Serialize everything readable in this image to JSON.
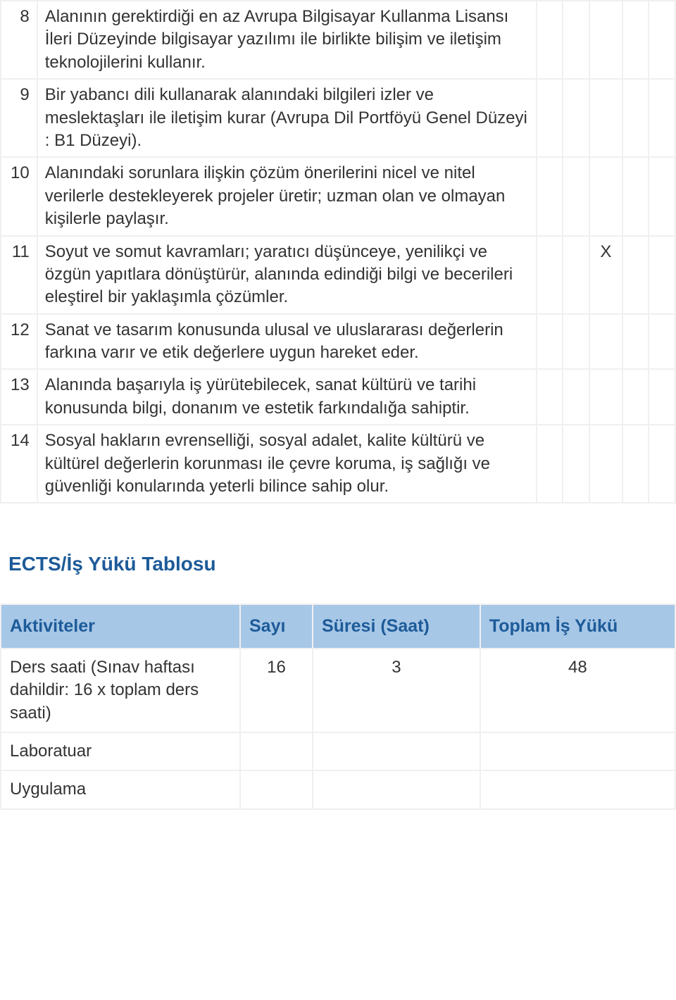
{
  "colors": {
    "border": "#f0f0f0",
    "text": "#333333",
    "heading": "#1d5b99",
    "header_bg": "#a7c7e7",
    "background": "#ffffff"
  },
  "typography": {
    "body_fontsize_pt": 18,
    "heading_fontsize_pt": 21,
    "font_family": "Verdana"
  },
  "outcomes": {
    "type": "table",
    "check_columns": 5,
    "rows": [
      {
        "num": "8",
        "desc": "Alanının gerektirdiği en az Avrupa Bilgisayar Kullanma Lisansı İleri Düzeyinde bilgisayar yazılımı ile birlikte bilişim ve iletişim teknolojilerini kullanır.",
        "checks": [
          "",
          "",
          "",
          "",
          ""
        ]
      },
      {
        "num": "9",
        "desc": "Bir yabancı dili kullanarak alanındaki bilgileri izler ve meslektaşları ile iletişim kurar (Avrupa Dil Portföyü Genel Düzeyi : B1 Düzeyi).",
        "checks": [
          "",
          "",
          "",
          "",
          ""
        ]
      },
      {
        "num": "10",
        "desc": "Alanındaki sorunlara ilişkin çözüm önerilerini nicel ve nitel verilerle destekleyerek projeler üretir; uzman olan ve olmayan kişilerle paylaşır.",
        "checks": [
          "",
          "",
          "",
          "",
          ""
        ]
      },
      {
        "num": "11",
        "desc": "Soyut ve somut kavramları; yaratıcı düşünceye, yenilikçi ve özgün yapıtlara dönüştürür, alanında edindiği bilgi ve becerileri eleştirel bir yaklaşımla çözümler.",
        "checks": [
          "",
          "",
          "X",
          "",
          ""
        ]
      },
      {
        "num": "12",
        "desc": "Sanat ve tasarım konusunda ulusal ve uluslararası değerlerin farkına varır ve etik değerlere uygun hareket eder.",
        "checks": [
          "",
          "",
          "",
          "",
          ""
        ]
      },
      {
        "num": "13",
        "desc": "Alanında başarıyla iş yürütebilecek, sanat kültürü ve tarihi konusunda bilgi, donanım ve estetik farkındalığa sahiptir.",
        "checks": [
          "",
          "",
          "",
          "",
          ""
        ]
      },
      {
        "num": "14",
        "desc": "Sosyal hakların evrenselliği, sosyal adalet, kalite kültürü ve kültürel değerlerin korunması ile çevre koruma, iş sağlığı ve güvenliği konularında yeterli bilince sahip olur.",
        "checks": [
          "",
          "",
          "",
          "",
          ""
        ]
      }
    ]
  },
  "workload": {
    "title": "ECTS/İş Yükü Tablosu",
    "type": "table",
    "columns": [
      "Aktiviteler",
      "Sayı",
      "Süresi (Saat)",
      "Toplam İş Yükü"
    ],
    "rows": [
      {
        "activity": "Ders saati (Sınav haftası dahildir: 16 x toplam ders saati)",
        "count": "16",
        "duration": "3",
        "total": "48"
      },
      {
        "activity": "Laboratuar",
        "count": "",
        "duration": "",
        "total": ""
      },
      {
        "activity": "Uygulama",
        "count": "",
        "duration": "",
        "total": ""
      }
    ]
  }
}
